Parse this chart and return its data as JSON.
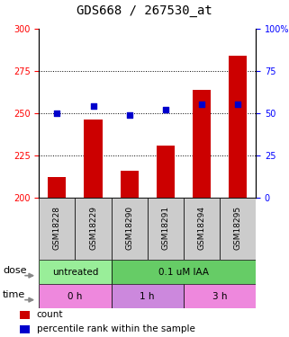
{
  "title": "GDS668 / 267530_at",
  "samples": [
    "GSM18228",
    "GSM18229",
    "GSM18290",
    "GSM18291",
    "GSM18294",
    "GSM18295"
  ],
  "counts": [
    212,
    246,
    216,
    231,
    264,
    284
  ],
  "percentiles": [
    50,
    54,
    49,
    52,
    55,
    55
  ],
  "ylim_left": [
    200,
    300
  ],
  "ylim_right": [
    0,
    100
  ],
  "yticks_left": [
    200,
    225,
    250,
    275,
    300
  ],
  "yticks_right": [
    0,
    25,
    50,
    75,
    100
  ],
  "bar_color": "#cc0000",
  "dot_color": "#0000cc",
  "bar_width": 0.5,
  "dose_labels": [
    {
      "label": "untreated",
      "spans": [
        0,
        2
      ],
      "color": "#99ee99"
    },
    {
      "label": "0.1 uM IAA",
      "spans": [
        2,
        6
      ],
      "color": "#66cc66"
    }
  ],
  "time_labels": [
    {
      "label": "0 h",
      "spans": [
        0,
        2
      ],
      "color": "#ee88dd"
    },
    {
      "label": "1 h",
      "spans": [
        2,
        4
      ],
      "color": "#cc88dd"
    },
    {
      "label": "3 h",
      "spans": [
        4,
        6
      ],
      "color": "#ee88dd"
    }
  ],
  "dose_row_label": "dose",
  "time_row_label": "time",
  "legend_count_label": "count",
  "legend_percentile_label": "percentile rank within the sample",
  "sample_box_color": "#cccccc",
  "title_fontsize": 10,
  "tick_fontsize": 7,
  "label_fontsize": 7.5,
  "sample_fontsize": 6.5,
  "row_label_fontsize": 8
}
